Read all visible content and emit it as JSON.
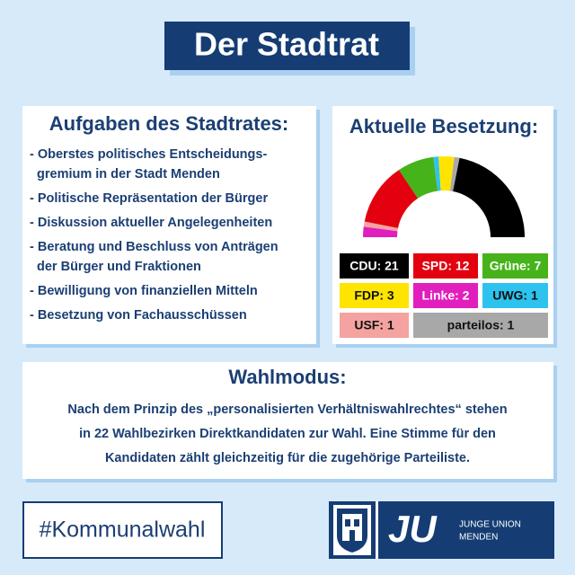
{
  "title": "Der Stadtrat",
  "tasks": {
    "heading": "Aufgaben des Stadtrates:",
    "items": [
      [
        "- Oberstes politisches Entscheidungs-",
        "gremium in der Stadt Menden"
      ],
      [
        "- Politische Repräsentation der Bürger"
      ],
      [
        "- Diskussion aktueller Angelegenheiten"
      ],
      [
        "- Beratung und Beschluss von Anträgen",
        "der Bürger und Fraktionen"
      ],
      [
        "- Bewilligung von finanziellen Mitteln"
      ],
      [
        "- Besetzung von Fachausschüssen"
      ]
    ]
  },
  "chart_data": {
    "type": "pie",
    "title": "Aktuelle Besetzung:",
    "values": [
      21,
      12,
      7,
      3,
      2,
      1,
      1,
      1
    ],
    "value_labels": [
      "CDU: 21",
      "SPD: 12",
      "Grüne: 7",
      "FDP: 3",
      "Linke: 2",
      "UWG: 1",
      "USF: 1",
      "parteilos: 1"
    ],
    "colors": [
      "#000000",
      "#e3000f",
      "#46b31a",
      "#ffe400",
      "#e01fbd",
      "#2ec3ee",
      "#f4a3a0",
      "#a8a8a8"
    ]
  },
  "mode": {
    "heading": "Wahlmodus:",
    "lines": [
      "Nach dem Prinzip des „personalisierten Verhältniswahlrechtes“ stehen",
      "in 22 Wahlbezirken Direktkandidaten zur Wahl. Eine Stimme für den",
      "Kandidaten zählt gleichzeitig für die zugehörige Parteiliste."
    ]
  },
  "hashtag": "#Kommunalwahl",
  "logo": {
    "initials": "JU",
    "lines": [
      "JUNGE UNION",
      "MENDEN"
    ]
  }
}
